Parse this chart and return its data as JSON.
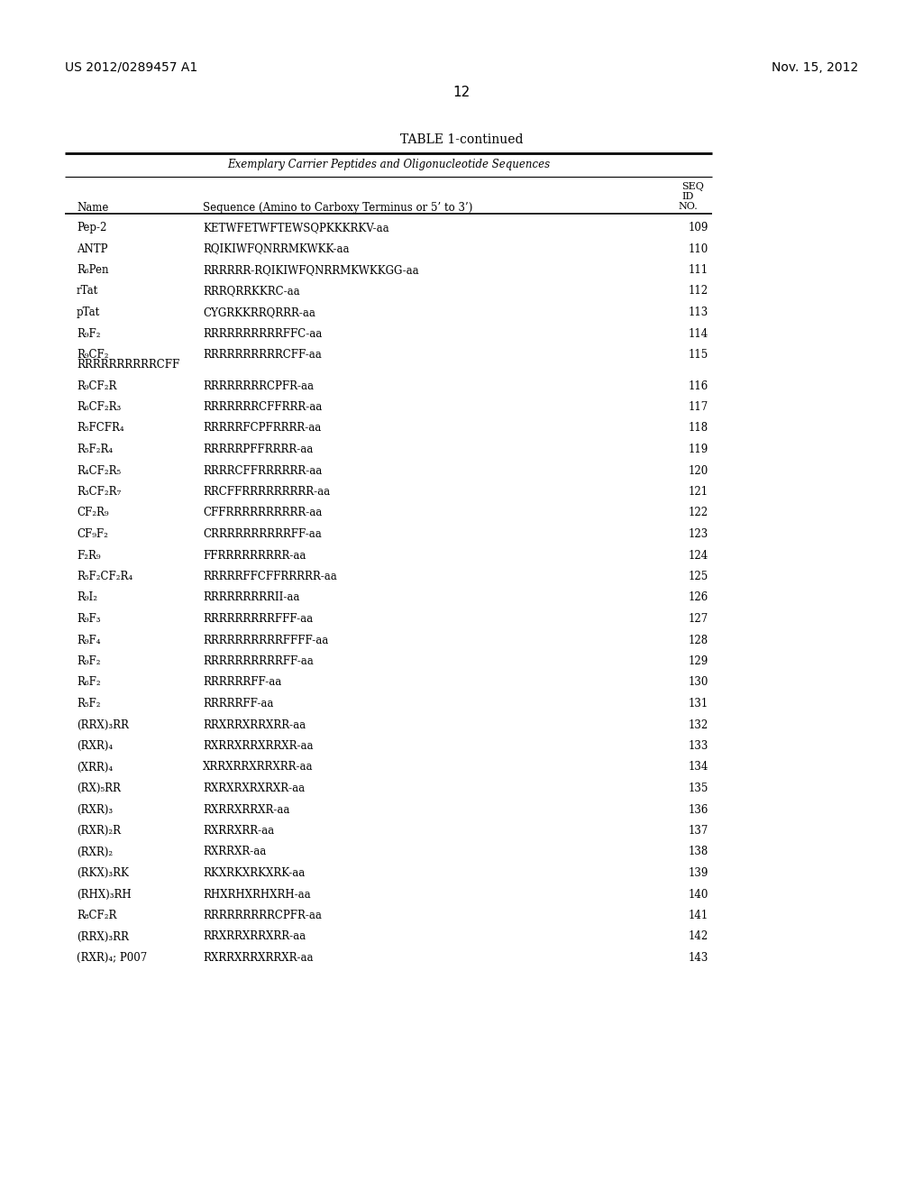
{
  "background_color": "#ffffff",
  "header_left": "US 2012/0289457 A1",
  "header_right": "Nov. 15, 2012",
  "page_number": "12",
  "table_title": "TABLE 1-continued",
  "table_subtitle": "Exemplary Carrier Peptides and Oligonucleotide Sequences",
  "rows": [
    [
      "Pep-2",
      "KETWFETWFTEWSQPKKKRKV-aa",
      "109"
    ],
    [
      "ANTP",
      "RQIKIWFQNRRMKWKK-aa",
      "110"
    ],
    [
      "R₆Pen",
      "RRRRRR-RQIKIWFQNRRMKWKKGG-aa",
      "111"
    ],
    [
      "rTat",
      "RRRQRRKKRC-aa",
      "112"
    ],
    [
      "pTat",
      "CYGRKKRRQRRR-aa",
      "113"
    ],
    [
      "R₉F₂",
      "RRRRRRRRRRFFC-aa",
      "114"
    ],
    [
      "R₉CF₂\nRRRRRRRRRRCFF",
      "RRRRRRRRRRCFF-aa",
      "115"
    ],
    [
      "R₉CF₂R",
      "RRRRRRRRCPFR-aa",
      "116"
    ],
    [
      "R₆CF₂R₃",
      "RRRRRRRCFFRRR-aa",
      "117"
    ],
    [
      "R₅FCFR₄",
      "RRRRRFCPFRRRR-aa",
      "118"
    ],
    [
      "R₅F₂R₄",
      "RRRRRPFFRRRR-aa",
      "119"
    ],
    [
      "R₄CF₂R₅",
      "RRRRCFFRRRRRR-aa",
      "120"
    ],
    [
      "R₃CF₂R₇",
      "RRCFFRRRRRRRRR-aa",
      "121"
    ],
    [
      "CF₂R₉",
      "CFFRRRRRRRRRR-aa",
      "122"
    ],
    [
      "CF₉F₂",
      "CRRRRRRRRRRFF-aa",
      "123"
    ],
    [
      "F₂R₉",
      "FFRRRRRRRRR-aa",
      "124"
    ],
    [
      "R₅F₂CF₂R₄",
      "RRRRRFFCFFRRRRR-aa",
      "125"
    ],
    [
      "R₉I₂",
      "RRRRRRRRRII-aa",
      "126"
    ],
    [
      "R₉F₃",
      "RRRRRRRRRFFF-aa",
      "127"
    ],
    [
      "R₉F₄",
      "RRRRRRRRRRFFFF-aa",
      "128"
    ],
    [
      "R₉F₂",
      "RRRRRRRRRRFF-aa",
      "129"
    ],
    [
      "R₆F₂",
      "RRRRRRFF-aa",
      "130"
    ],
    [
      "R₅F₂",
      "RRRRRFF-aa",
      "131"
    ],
    [
      "(RRX)₃RR",
      "RRXRRXRRXRR-aa",
      "132"
    ],
    [
      "(RXR)₄",
      "RXRRXRRXRRXR-aa",
      "133"
    ],
    [
      "(XRR)₄",
      "XRRXRRXRRXRR-aa",
      "134"
    ],
    [
      "(RX)₅RR",
      "RXRXRXRXRXR-aa",
      "135"
    ],
    [
      "(RXR)₃",
      "RXRRXRRXR-aa",
      "136"
    ],
    [
      "(RXR)₂R",
      "RXRRXRR-aa",
      "137"
    ],
    [
      "(RXR)₂",
      "RXRRXR-aa",
      "138"
    ],
    [
      "(RKX)₃RK",
      "RKXRKXRKXRK-aa",
      "139"
    ],
    [
      "(RHX)₃RH",
      "RHXRHXRHXRH-aa",
      "140"
    ],
    [
      "R₈CF₂R",
      "RRRRRRRRRCPFR-aa",
      "141"
    ],
    [
      "(RRX)₃RR",
      "RRXRRXRRXRR-aa",
      "142"
    ],
    [
      "(RXR)₄; P007",
      "RXRRXRRXRRXR-aa",
      "143"
    ]
  ]
}
